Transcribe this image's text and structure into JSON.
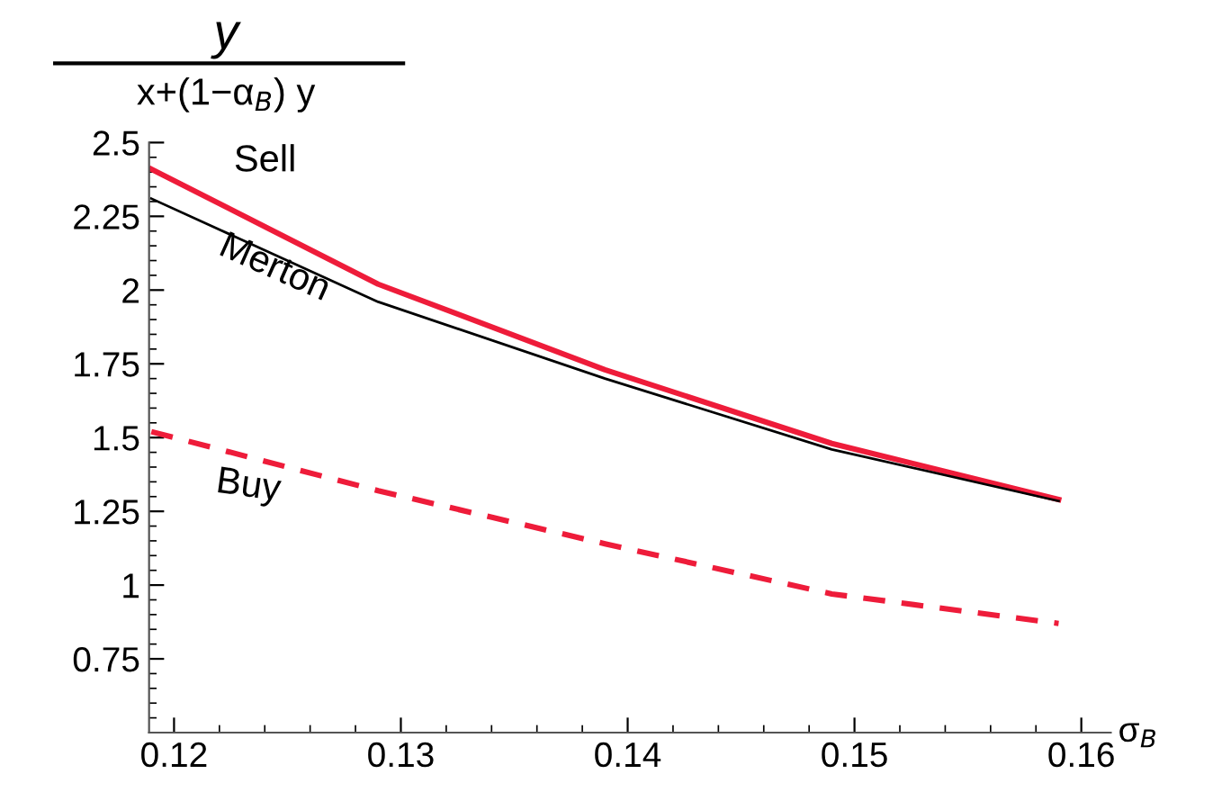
{
  "chart_data": {
    "type": "line",
    "xlabel": "σ$_{B}$",
    "ylabel": "y\nx+(1−α$_{B}$) y",
    "x": [
      0.119,
      0.129,
      0.139,
      0.149,
      0.159
    ],
    "series": [
      {
        "name": "Sell",
        "color": "#ee1c3a",
        "values": [
          2.41,
          2.02,
          1.73,
          1.48,
          1.29
        ],
        "line_style": "solid"
      },
      {
        "name": "Merton",
        "color": "#000000",
        "values": [
          2.31,
          1.96,
          1.7,
          1.46,
          1.285
        ],
        "line_style": "solid"
      },
      {
        "name": "Buy",
        "color": "#ee1c3a",
        "values": [
          1.52,
          1.32,
          1.14,
          0.97,
          0.87
        ],
        "line_style": "dashed"
      }
    ],
    "xlim": [
      0.1189,
      0.1613
    ],
    "ylim": [
      0.5,
      2.5
    ],
    "xticks": [
      0.12,
      0.13,
      0.14,
      0.15,
      0.16
    ],
    "yticks": [
      {
        "value": 0.75,
        "label": "0.75"
      },
      {
        "value": 1,
        "label": "1"
      },
      {
        "value": 1.25,
        "label": "1.25"
      },
      {
        "value": 1.5,
        "label": "1.5"
      },
      {
        "value": 1.75,
        "label": "1.75"
      },
      {
        "value": 2,
        "label": "2"
      },
      {
        "value": 2.25,
        "label": "2.25"
      },
      {
        "value": 2.5,
        "label": "2.5"
      }
    ],
    "grid": false,
    "legend": false,
    "marker": "none"
  }
}
